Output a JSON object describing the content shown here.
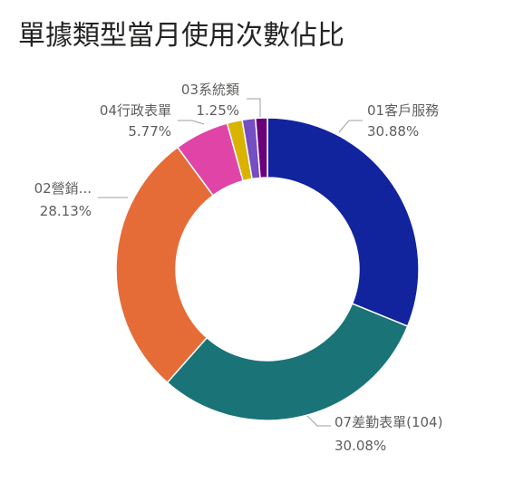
{
  "title": "單據類型當月使用次數佔比",
  "chart_data": {
    "type": "pie",
    "variant": "donut",
    "title": "單據類型當月使用次數佔比",
    "slices": [
      {
        "label": "01客戶服務",
        "value": 30.88,
        "pct_text": "30.88%",
        "color": "#12239E"
      },
      {
        "label": "07差勤表單(104)",
        "value": 30.08,
        "pct_text": "30.08%",
        "color": "#1A7377"
      },
      {
        "label": "02營銷...",
        "value": 28.13,
        "pct_text": "28.13%",
        "color": "#E66C37"
      },
      {
        "label": "04行政表單",
        "value": 5.77,
        "pct_text": "5.77%",
        "color": "#E044A7"
      },
      {
        "label": "",
        "value": 1.6,
        "pct_text": "",
        "color": "#D9B300"
      },
      {
        "label": "",
        "value": 1.4,
        "pct_text": "",
        "color": "#744EC2"
      },
      {
        "label": "03系統類",
        "value": 1.25,
        "pct_text": "1.25%",
        "color": "#6B007B"
      }
    ],
    "legend": "none",
    "data_labels": "outside with leader lines"
  }
}
